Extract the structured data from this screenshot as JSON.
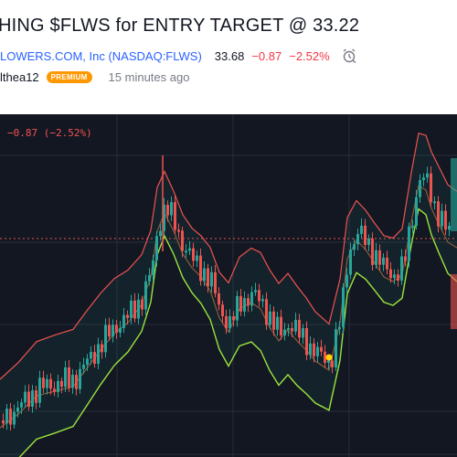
{
  "idea": {
    "title": "HING $FLWS for ENTRY TARGET @ 33.22",
    "company": "LOWERS.COM, Inc (NASDAQ:FLWS)",
    "price": "33.68",
    "change": "−0.87",
    "change_pct": "−2.52%",
    "author": "lthea12",
    "badge": "PREMIUM",
    "time_ago": "15 minutes ago"
  },
  "chart_header": {
    "ohlc_change": "−0.87 (−2.52%)"
  },
  "colors": {
    "background": "#131722",
    "up": "#26a69a",
    "down": "#ef5350",
    "upper_band": "#ef5350",
    "basis": "#8d5a3a",
    "lower_band": "#9be33d",
    "marker": "#ffd600"
  },
  "icons": {
    "alarm": "alarm-clock-icon"
  }
}
